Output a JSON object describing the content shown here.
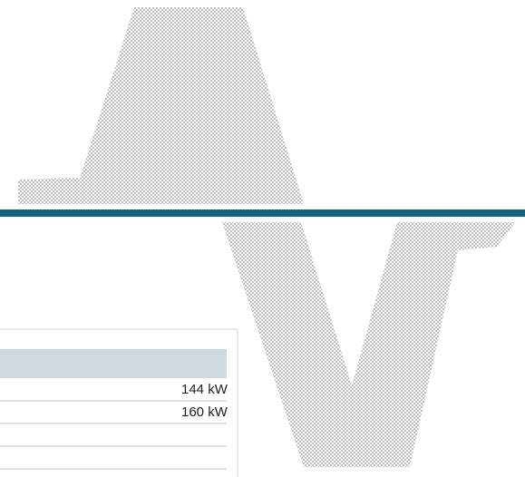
{
  "table": {
    "rows": [
      [
        "144 kW"
      ],
      [
        "160 kW"
      ]
    ]
  }
}
